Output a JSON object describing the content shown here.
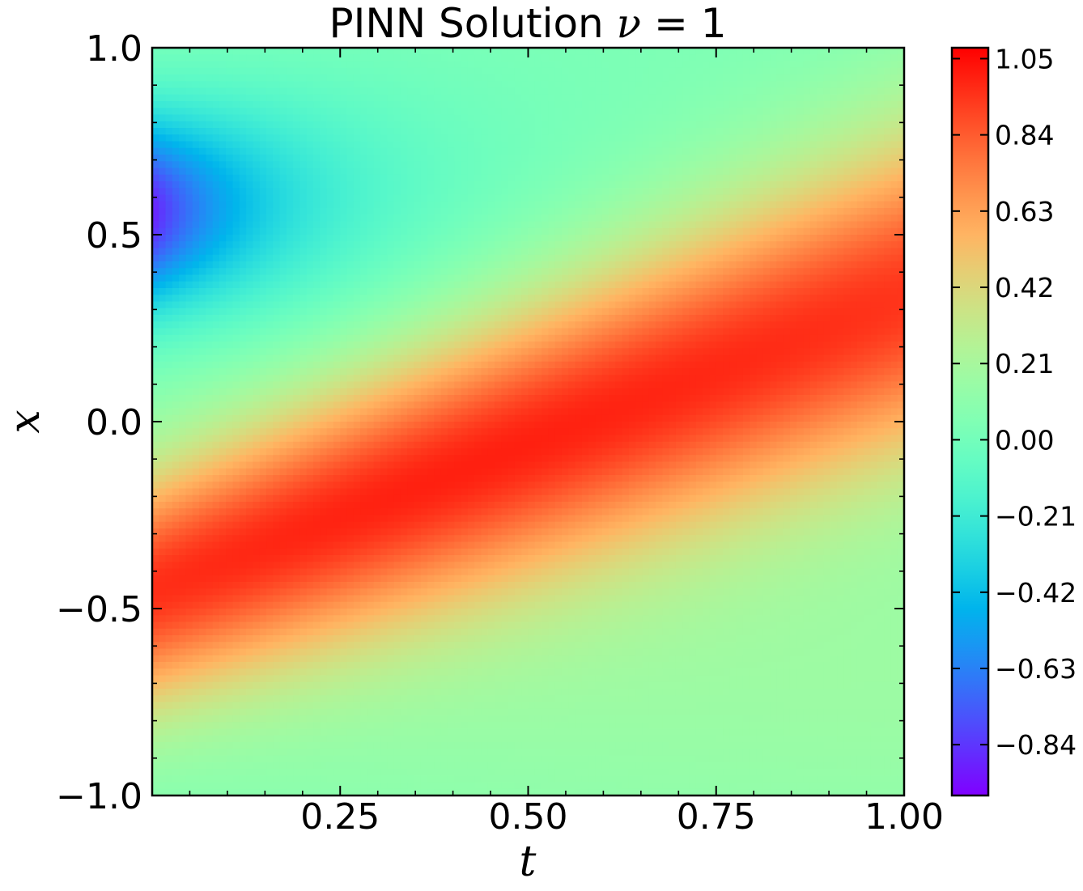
{
  "chart_data": {
    "type": "heatmap",
    "title": "PINN Solution ν = 1",
    "title_parts": {
      "text": "PINN Solution ",
      "nu": "ν",
      "eq": " = 1"
    },
    "xlabel": "t",
    "ylabel": "x",
    "xlim": [
      0.0,
      1.0
    ],
    "ylim": [
      -1.0,
      1.0
    ],
    "x_ticks": [
      0.25,
      0.5,
      0.75,
      1.0
    ],
    "x_tick_labels": [
      "0.25",
      "0.50",
      "0.75",
      "1.00"
    ],
    "y_ticks": [
      -1.0,
      -0.5,
      0.0,
      0.5,
      1.0
    ],
    "y_tick_labels": [
      "−1.0",
      "−0.5",
      "0.0",
      "0.5",
      "1.0"
    ],
    "colorbar": {
      "vmin": -0.98,
      "vmax": 1.08,
      "ticks": [
        -0.84,
        -0.63,
        -0.42,
        -0.21,
        0.0,
        0.21,
        0.42,
        0.63,
        0.84,
        1.05
      ],
      "tick_labels": [
        "−0.84",
        "−0.63",
        "−0.42",
        "−0.21",
        "0.00",
        "0.21",
        "0.42",
        "0.63",
        "0.84",
        "1.05"
      ],
      "colormap": "rainbow"
    },
    "field_description": "Traveling wave crest moving from x≈-0.45 at t=0 to x≈0.3 at t=1; trough near x≈0.55 at t=0 decaying over time",
    "field_samples": [
      {
        "t": 0.0,
        "x": 0.55,
        "u": -0.95
      },
      {
        "t": 0.0,
        "x": -0.45,
        "u": 0.95
      },
      {
        "t": 0.25,
        "x": -0.3,
        "u": 1.0
      },
      {
        "t": 0.5,
        "x": -0.05,
        "u": 1.05
      },
      {
        "t": 0.75,
        "x": 0.2,
        "u": 0.95
      },
      {
        "t": 1.0,
        "x": 0.35,
        "u": 0.85
      },
      {
        "t": 1.0,
        "x": -0.8,
        "u": 0.1
      }
    ]
  }
}
